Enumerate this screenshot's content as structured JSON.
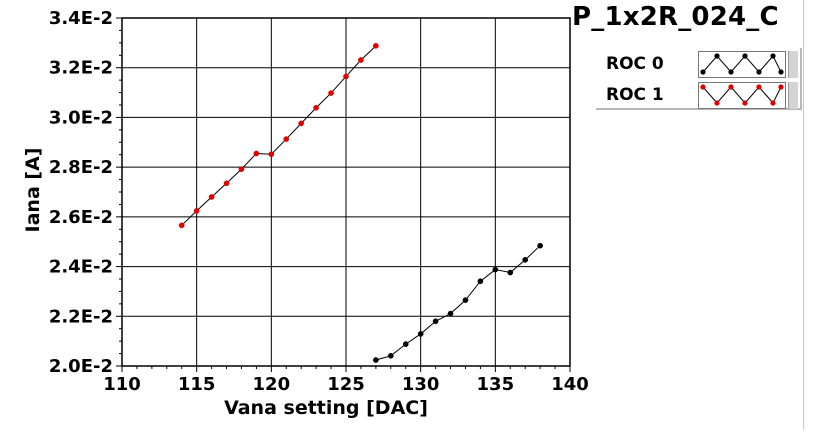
{
  "chart_data": {
    "type": "line",
    "title": "P_1x2R_024_C",
    "xlabel": "Vana setting [DAC]",
    "ylabel": "Iana [A]",
    "xlim": [
      110,
      140
    ],
    "ylim": [
      0.02,
      0.034
    ],
    "x_ticks": [
      110,
      115,
      120,
      125,
      130,
      135,
      140
    ],
    "x_tick_labels": [
      "110",
      "115",
      "120",
      "125",
      "130",
      "135",
      "140"
    ],
    "y_ticks": [
      0.02,
      0.022,
      0.024,
      0.026,
      0.028,
      0.03,
      0.032,
      0.034
    ],
    "y_tick_labels": [
      "2.0E-2",
      "2.2E-2",
      "2.4E-2",
      "2.6E-2",
      "2.8E-2",
      "3.0E-2",
      "3.2E-2",
      "3.4E-2"
    ],
    "grid": true,
    "legend_position": "top-right",
    "series": [
      {
        "name": "ROC 0",
        "color": "#000000",
        "x": [
          127,
          128,
          129,
          130,
          131,
          132,
          133,
          134,
          135,
          136,
          137,
          138
        ],
        "y": [
          0.02024,
          0.02041,
          0.02088,
          0.02129,
          0.0218,
          0.02211,
          0.02265,
          0.02341,
          0.02388,
          0.02376,
          0.02427,
          0.02484
        ]
      },
      {
        "name": "ROC 1",
        "color": "#e00000",
        "x": [
          114,
          115,
          116,
          117,
          118,
          119,
          120,
          121,
          122,
          123,
          124,
          125,
          126,
          127
        ],
        "y": [
          0.02566,
          0.02624,
          0.0268,
          0.02735,
          0.02792,
          0.02855,
          0.02852,
          0.02913,
          0.02976,
          0.03039,
          0.03098,
          0.03165,
          0.03231,
          0.03288
        ]
      }
    ]
  }
}
